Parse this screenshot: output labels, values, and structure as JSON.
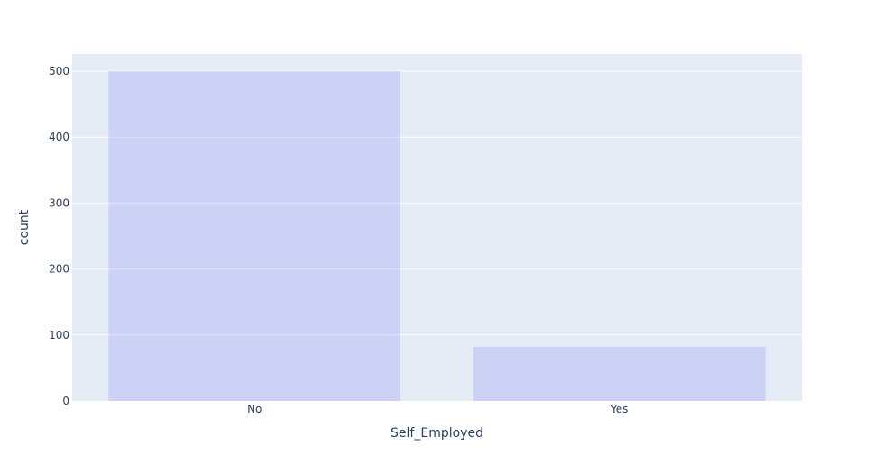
{
  "chart_data": {
    "type": "bar",
    "title": "",
    "xlabel": "Self_Employed",
    "ylabel": "count",
    "categories": [
      "No",
      "Yes"
    ],
    "values": [
      500,
      82
    ],
    "ylim": [
      0,
      526
    ],
    "yticks": [
      0,
      100,
      200,
      300,
      400,
      500
    ],
    "grid": true,
    "legend": "none",
    "colors": {
      "plot_background": "#E5ECF6",
      "gridline": "#FFFFFF",
      "bar_fill": "#636EFA",
      "bar_opacity": 0.2,
      "text": "#2A3F5F"
    }
  }
}
